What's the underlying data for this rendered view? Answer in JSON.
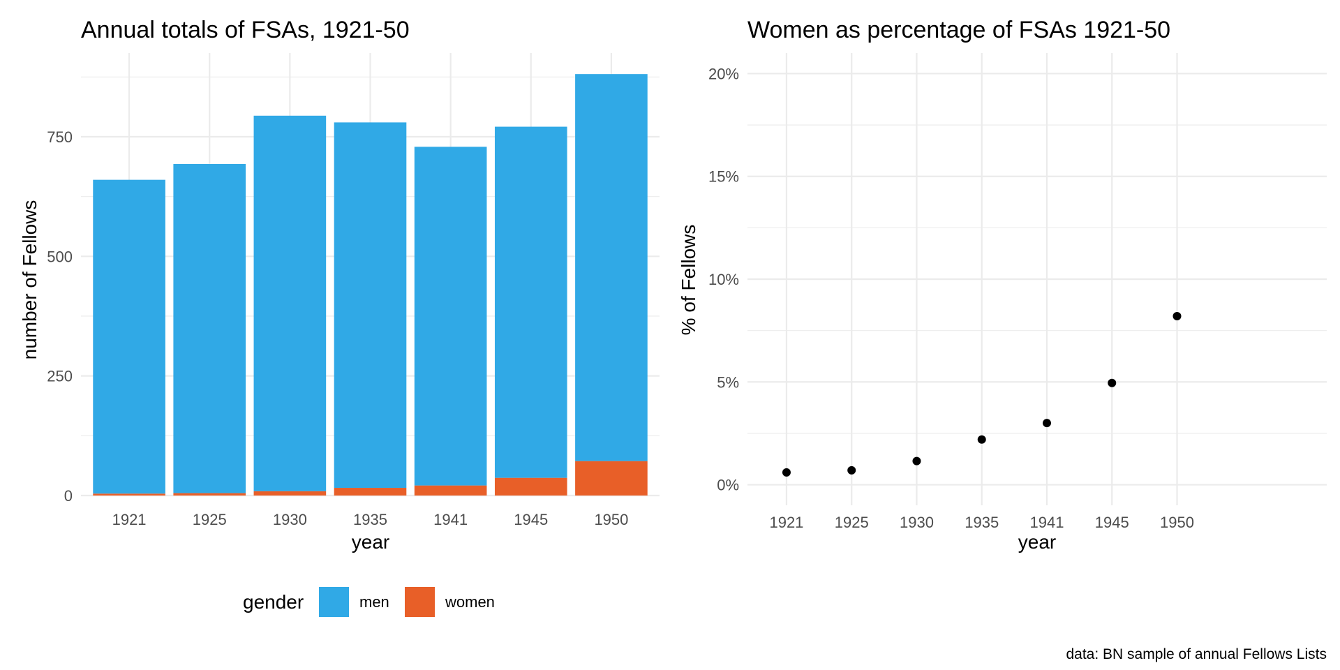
{
  "chart_data": [
    {
      "type": "bar",
      "stacked": true,
      "title": "Annual totals of FSAs, 1921-50",
      "xlabel": "year",
      "ylabel": "number of Fellows",
      "categories": [
        "1921",
        "1925",
        "1930",
        "1935",
        "1941",
        "1945",
        "1950"
      ],
      "series": [
        {
          "name": "men",
          "color": "#30a9e6",
          "values": [
            656,
            688,
            785,
            764,
            708,
            734,
            809
          ]
        },
        {
          "name": "women",
          "color": "#e85f28",
          "values": [
            4,
            5,
            9,
            16,
            21,
            37,
            72
          ]
        }
      ],
      "yticks": [
        0,
        250,
        500,
        750
      ],
      "ytick_labels": [
        "0",
        "250",
        "500",
        "750"
      ],
      "ylim": [
        0,
        925
      ],
      "grid": true
    },
    {
      "type": "scatter",
      "title": "Women as percentage of FSAs 1921-50",
      "xlabel": "year",
      "ylabel": "% of Fellows",
      "categories": [
        "1921",
        "1925",
        "1930",
        "1935",
        "1941",
        "1945",
        "1950"
      ],
      "values": [
        0.6,
        0.7,
        1.15,
        2.2,
        3.0,
        4.95,
        8.2
      ],
      "color": "#000000",
      "yticks": [
        0,
        5,
        10,
        15,
        20
      ],
      "ytick_labels": [
        "0%",
        "5%",
        "10%",
        "15%",
        "20%"
      ],
      "ylim": [
        -1,
        21
      ],
      "grid": true
    }
  ],
  "legend": {
    "title": "gender",
    "placement": "bottom",
    "items": [
      {
        "label": "men",
        "color": "#30a9e6"
      },
      {
        "label": "women",
        "color": "#e85f28"
      }
    ]
  },
  "caption": "data: BN sample of annual Fellows Lists"
}
